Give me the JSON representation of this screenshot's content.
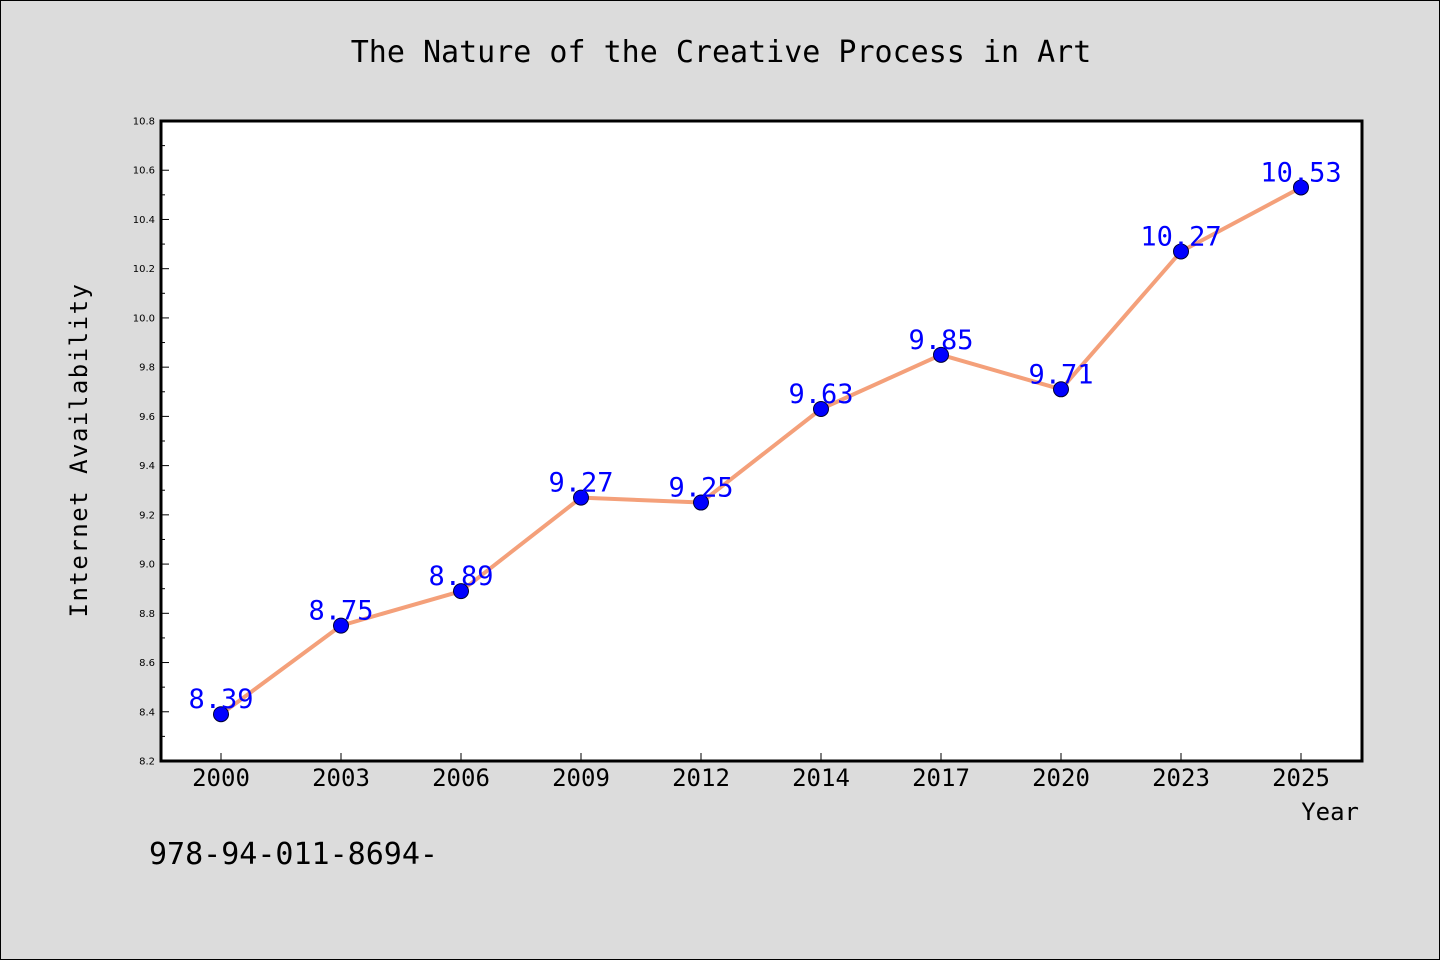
{
  "chart_data": {
    "type": "line",
    "title": "The Nature of the Creative Process in Art",
    "xlabel": "Year",
    "ylabel": "Internet Availability",
    "categories": [
      "2000",
      "2003",
      "2006",
      "2009",
      "2012",
      "2014",
      "2017",
      "2020",
      "2023",
      "2025"
    ],
    "series": [
      {
        "values": [
          8.39,
          8.75,
          8.89,
          9.27,
          9.25,
          9.63,
          9.85,
          9.71,
          10.27,
          10.53
        ],
        "line_color": "#f4a07a",
        "marker_color": "#0000ff"
      }
    ],
    "data_labels": [
      "8.39",
      "8.75",
      "8.89",
      "9.27",
      "9.25",
      "9.63",
      "9.85",
      "9.71",
      "10.27",
      "10.53"
    ],
    "ylim": [
      8.2,
      10.8
    ],
    "yticks": [
      "8.2",
      "8.4",
      "8.6",
      "8.8",
      "9.0",
      "9.2",
      "9.4",
      "9.6",
      "9.8",
      "10.0",
      "10.2",
      "10.4",
      "10.6",
      "10.8"
    ],
    "grid": false,
    "legend": "none",
    "background_color": "#dcdcdc",
    "plot_background_color": "#ffffff",
    "data_label_color": "#0000ff"
  },
  "footnote": "978-94-011-8694-"
}
